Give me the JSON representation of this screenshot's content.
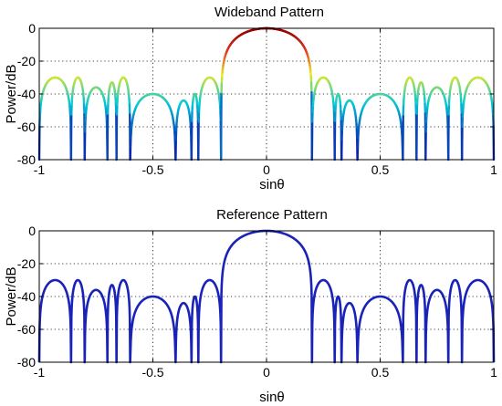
{
  "chart_data": [
    {
      "type": "line",
      "title": "Wideband Pattern",
      "xlabel": "sinθ",
      "ylabel": "Power/dB",
      "xlim": [
        -1,
        1
      ],
      "ylim": [
        -80,
        0
      ],
      "xticks": [
        -1,
        -0.5,
        0,
        0.5,
        1
      ],
      "yticks": [
        0,
        -20,
        -40,
        -60,
        -80
      ],
      "xtick_labels": [
        "-1",
        "-0.5",
        "0",
        "0.5",
        "1"
      ],
      "ytick_labels": [
        "0",
        "-20",
        "-40",
        "-60",
        "-80"
      ],
      "grid": true,
      "coloring": "colormap by power (blue low → cyan → yellow → red high)",
      "colormap": [
        "#0a1fb0",
        "#00c8d8",
        "#e8e820",
        "#e03020",
        "#8b0000"
      ],
      "series": [
        {
          "mainlobe_halfwidth": 0.2,
          "nulls": [
            0.2,
            0.3,
            0.33,
            0.4,
            0.6,
            0.66,
            0.7,
            0.8,
            0.86,
            1.0
          ],
          "sidelobe_peaks_db": [
            -30,
            -40,
            -44,
            -40,
            -30,
            -33,
            -36,
            -30,
            -30,
            -31
          ]
        }
      ]
    },
    {
      "type": "line",
      "title": "Reference Pattern",
      "xlabel": "sinθ",
      "ylabel": "Power/dB",
      "xlim": [
        -1,
        1
      ],
      "ylim": [
        -80,
        0
      ],
      "xticks": [
        -1,
        -0.5,
        0,
        0.5,
        1
      ],
      "yticks": [
        0,
        -20,
        -40,
        -60,
        -80
      ],
      "xtick_labels": [
        "-1",
        "-0.5",
        "0",
        "0.5",
        "1"
      ],
      "ytick_labels": [
        "0",
        "-20",
        "-40",
        "-60",
        "-80"
      ],
      "grid": true,
      "line_color": "#1a23b8",
      "series": [
        {
          "mainlobe_halfwidth": 0.2,
          "nulls": [
            0.2,
            0.3,
            0.33,
            0.4,
            0.6,
            0.66,
            0.7,
            0.8,
            0.86,
            1.0
          ],
          "sidelobe_peaks_db": [
            -30,
            -40,
            -44,
            -40,
            -30,
            -33,
            -36,
            -30,
            -30,
            -31
          ]
        }
      ]
    }
  ]
}
